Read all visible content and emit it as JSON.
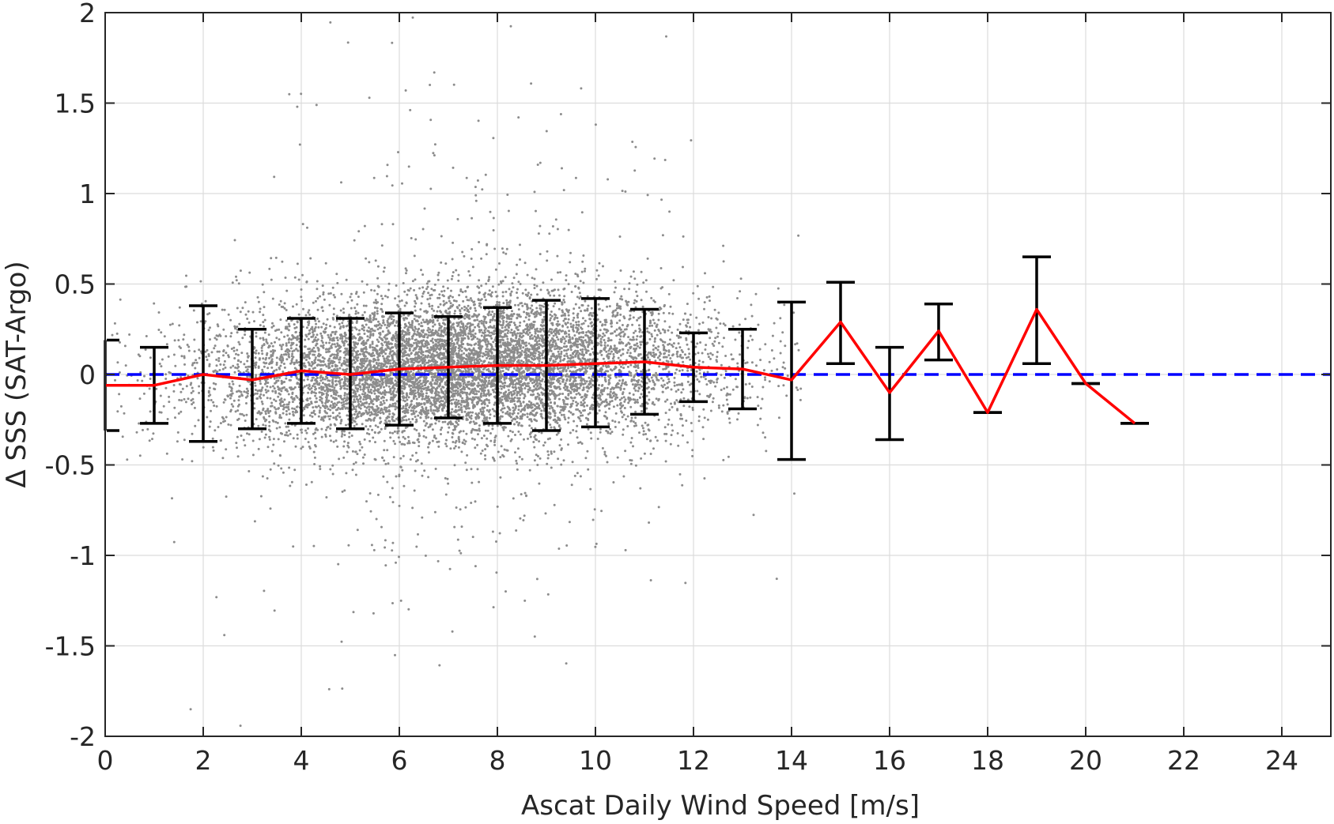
{
  "chart_data": {
    "type": "scatter",
    "title": "",
    "xlabel": "Ascat Daily Wind Speed [m/s]",
    "ylabel": "Δ SSS (SAT-Argo)",
    "xlim": [
      0,
      25
    ],
    "ylim": [
      -2,
      2
    ],
    "xticks": [
      0,
      2,
      4,
      6,
      8,
      10,
      12,
      14,
      16,
      18,
      20,
      22,
      24
    ],
    "xtick_labels": [
      "0",
      "2",
      "4",
      "6",
      "8",
      "10",
      "12",
      "14",
      "16",
      "18",
      "20",
      "22",
      "24"
    ],
    "yticks": [
      2,
      1.5,
      1,
      0.5,
      0,
      -0.5,
      -1,
      -1.5,
      -2
    ],
    "ytick_labels": [
      "2",
      "1.5",
      "1",
      "0.5",
      "0",
      "-0.5",
      "-1",
      "-1.5",
      "-2"
    ],
    "grid": true,
    "colors": {
      "scatter": "#8c8c8c",
      "mean_line": "#ff0000",
      "errorbar": "#000000",
      "zero_line": "#0000ff",
      "grid": "#dcdcdc",
      "axes": "#262626"
    },
    "scatter_spread": {
      "x_mean": 7.2,
      "x_sd": 2.6,
      "y_sd": 0.2,
      "outlier_y_sd": 0.75,
      "approx_points": 9000
    },
    "series": [
      {
        "kind": "mean_with_errorbars",
        "x": [
          0,
          1,
          2,
          3,
          4,
          5,
          6,
          7,
          8,
          9,
          10,
          11,
          12,
          13,
          14,
          15,
          16,
          17,
          18,
          19,
          20,
          21
        ],
        "y": [
          -0.06,
          -0.06,
          0.0,
          -0.03,
          0.02,
          0.0,
          0.03,
          0.04,
          0.05,
          0.05,
          0.06,
          0.07,
          0.04,
          0.03,
          -0.03,
          0.29,
          -0.1,
          0.24,
          -0.21,
          0.36,
          -0.05,
          -0.27
        ],
        "lower": [
          -0.31,
          -0.27,
          -0.37,
          -0.3,
          -0.27,
          -0.3,
          -0.28,
          -0.24,
          -0.27,
          -0.31,
          -0.29,
          -0.22,
          -0.15,
          -0.19,
          -0.47,
          0.06,
          -0.36,
          0.08,
          -0.21,
          0.06,
          -0.05,
          -0.27
        ],
        "upper": [
          0.19,
          0.15,
          0.38,
          0.25,
          0.31,
          0.31,
          0.34,
          0.32,
          0.37,
          0.41,
          0.42,
          0.36,
          0.23,
          0.25,
          0.4,
          0.51,
          0.15,
          0.39,
          -0.21,
          0.65,
          -0.05,
          -0.27
        ]
      },
      {
        "kind": "reference_line",
        "y": 0
      }
    ]
  }
}
